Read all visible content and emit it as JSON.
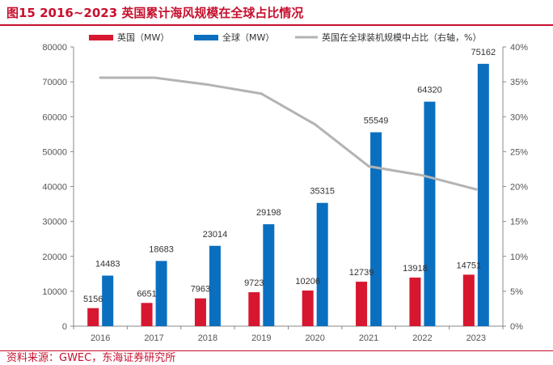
{
  "header": {
    "title": "图15 2016~2023 英国累计海风规模在全球占比情况",
    "source": "资料来源：GWEC，东海证券研究所"
  },
  "colors": {
    "accent": "#c8102e",
    "uk": "#d7172f",
    "global": "#0b6fc0",
    "share": "#b3b3b3"
  },
  "chart_data": {
    "type": "bar",
    "categories": [
      "2016",
      "2017",
      "2018",
      "2019",
      "2020",
      "2021",
      "2022",
      "2023"
    ],
    "series": [
      {
        "name": "英国（MW）",
        "kind": "bar",
        "axis": "left",
        "values": [
          5156,
          6651,
          7963,
          9723,
          10206,
          12739,
          13918,
          14751
        ],
        "labels": [
          "5156",
          "6651",
          "7963",
          "9723",
          "10206",
          "12739",
          "13918",
          "14751"
        ]
      },
      {
        "name": "全球（MW）",
        "kind": "bar",
        "axis": "left",
        "values": [
          14483,
          18683,
          23014,
          29198,
          35315,
          55549,
          64320,
          75162
        ],
        "labels": [
          "14483",
          "18683",
          "23014",
          "29198",
          "35315",
          "55549",
          "64320",
          "75162"
        ]
      },
      {
        "name": "英国在全球装机规模中占比（右轴，%）",
        "kind": "line",
        "axis": "right",
        "values": [
          35.6,
          35.6,
          34.6,
          33.3,
          28.9,
          22.9,
          21.6,
          19.6
        ]
      }
    ],
    "left_axis": {
      "min": 0,
      "max": 80000,
      "ticks": [
        0,
        10000,
        20000,
        30000,
        40000,
        50000,
        60000,
        70000,
        80000
      ],
      "tick_labels": [
        "0",
        "10000",
        "20000",
        "30000",
        "40000",
        "50000",
        "60000",
        "70000",
        "80000"
      ]
    },
    "right_axis": {
      "min": 0,
      "max": 40,
      "ticks": [
        0,
        5,
        10,
        15,
        20,
        25,
        30,
        35,
        40
      ],
      "tick_labels": [
        "0%",
        "5%",
        "10%",
        "15%",
        "20%",
        "25%",
        "30%",
        "35%",
        "40%"
      ]
    },
    "grid": false,
    "legend_position": "top"
  }
}
